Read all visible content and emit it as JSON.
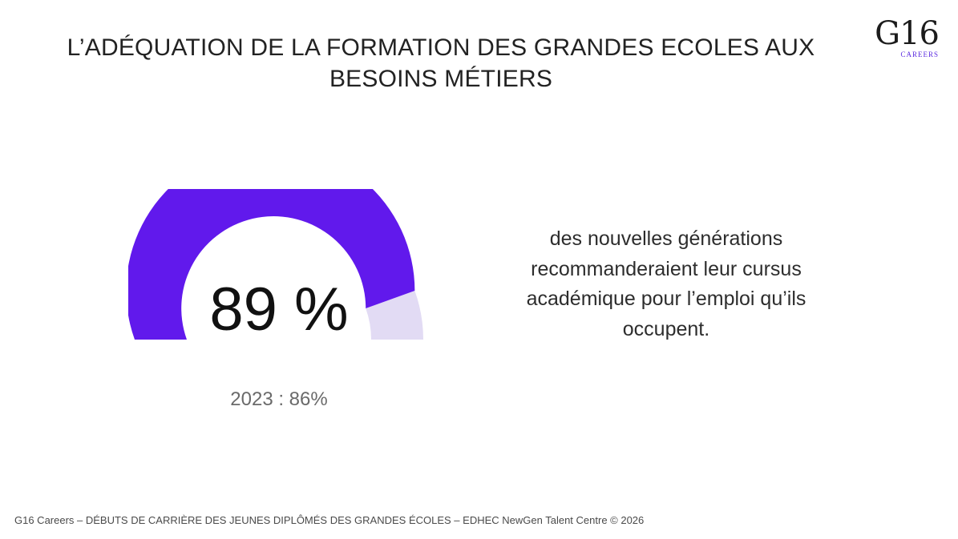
{
  "title": {
    "line1": "L’ADÉQUATION DE LA FORMATION DES GRANDES ECOLES AUX",
    "line2": "BESOINS MÉTIERS"
  },
  "logo": {
    "mark": "G16",
    "sub": "CAREERS"
  },
  "chart_data": {
    "type": "gauge",
    "value": 89,
    "max": 100,
    "value_label": "89 %",
    "comparison_label": "2023 : 86%",
    "comparison_value": 86,
    "colors": {
      "fill": "#6119ec",
      "remainder": "#e2dbf4"
    }
  },
  "description": {
    "lines": [
      "des nouvelles générations",
      "recommanderaient leur cursus",
      "académique pour l’emploi qu’ils",
      "occupent."
    ]
  },
  "footer": {
    "text": "G16 Careers – DÉBUTS DE CARRIÈRE DES JEUNES DIPLÔMÉS DES GRANDES ÉCOLES – EDHEC NewGen Talent Centre © 2026"
  }
}
